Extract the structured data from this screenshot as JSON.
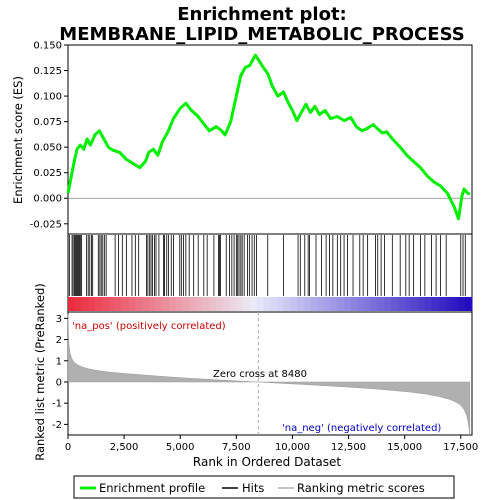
{
  "chart_data": {
    "type": "line",
    "title": "Enrichment plot:",
    "subtitle": "MEMBRANE_LIPID_METABOLIC_PROCESS",
    "top_panel": {
      "ylabel": "Enrichment score (ES)",
      "ylim": [
        -0.035,
        0.15
      ],
      "yticks": [
        "0.150",
        "0.125",
        "0.100",
        "0.075",
        "0.050",
        "0.025",
        "0.000",
        "-0.025"
      ],
      "ytick_values": [
        0.15,
        0.125,
        0.1,
        0.075,
        0.05,
        0.025,
        0.0,
        -0.025
      ],
      "series": [
        {
          "name": "Enrichment profile",
          "color": "#00ee00",
          "x": [
            0,
            100,
            250,
            400,
            550,
            700,
            850,
            1000,
            1200,
            1400,
            1600,
            1800,
            2000,
            2300,
            2600,
            2900,
            3200,
            3450,
            3600,
            3800,
            4000,
            4200,
            4450,
            4700,
            5000,
            5250,
            5500,
            5800,
            6000,
            6300,
            6600,
            6800,
            7000,
            7250,
            7500,
            7700,
            7900,
            8100,
            8350,
            8500,
            8700,
            8900,
            9100,
            9350,
            9600,
            9800,
            10000,
            10200,
            10400,
            10600,
            10800,
            11000,
            11200,
            11450,
            11700,
            12000,
            12300,
            12600,
            12850,
            13100,
            13300,
            13600,
            13800,
            14000,
            14200,
            14500,
            14800,
            15100,
            15400,
            15700,
            16000,
            16300,
            16600,
            16900,
            17200,
            17400,
            17550,
            17650,
            17800,
            17900
          ],
          "y": [
            0.005,
            0.016,
            0.033,
            0.048,
            0.052,
            0.048,
            0.058,
            0.052,
            0.062,
            0.066,
            0.058,
            0.05,
            0.047,
            0.045,
            0.038,
            0.034,
            0.03,
            0.036,
            0.045,
            0.048,
            0.042,
            0.055,
            0.065,
            0.078,
            0.088,
            0.093,
            0.086,
            0.08,
            0.074,
            0.066,
            0.07,
            0.067,
            0.062,
            0.075,
            0.1,
            0.12,
            0.128,
            0.13,
            0.14,
            0.135,
            0.128,
            0.122,
            0.11,
            0.1,
            0.104,
            0.094,
            0.086,
            0.076,
            0.084,
            0.092,
            0.084,
            0.09,
            0.082,
            0.086,
            0.078,
            0.08,
            0.076,
            0.079,
            0.07,
            0.066,
            0.068,
            0.072,
            0.068,
            0.064,
            0.065,
            0.057,
            0.05,
            0.042,
            0.036,
            0.03,
            0.022,
            0.016,
            0.012,
            0.005,
            -0.008,
            -0.02,
            0.002,
            0.009,
            0.005,
            0.004
          ]
        }
      ]
    },
    "hits_panel": {
      "legend_label": "Hits",
      "hit_positions": [
        60,
        180,
        230,
        290,
        330,
        380,
        420,
        470,
        510,
        550,
        600,
        830,
        900,
        970,
        1050,
        1100,
        1350,
        1420,
        1480,
        1550,
        1620,
        1700,
        2100,
        2250,
        2420,
        2600,
        2850,
        3000,
        3150,
        3500,
        3560,
        3640,
        3700,
        3760,
        3850,
        3920,
        4050,
        4250,
        4300,
        4400,
        4480,
        4600,
        4700,
        4980,
        5050,
        5150,
        5250,
        5400,
        5600,
        5800,
        6050,
        6200,
        6500,
        6700,
        6750,
        6800,
        7050,
        7200,
        7300,
        7400,
        7500,
        7560,
        7620,
        7700,
        7760,
        7850,
        8000,
        8080,
        8200,
        8300,
        8400,
        8900,
        9600,
        10250,
        10350,
        10550,
        10700,
        10760,
        11050,
        11300,
        11500,
        11650,
        11800,
        12000,
        12150,
        12300,
        12450,
        12700,
        13000,
        13150,
        13350,
        13700,
        13800,
        13950,
        14100,
        14450,
        14800,
        15050,
        15200,
        15400,
        15700,
        15900,
        16200,
        16400,
        16600,
        16850,
        17500,
        17600,
        17700
      ]
    },
    "rank_panel": {
      "xlabel": "Rank in Ordered Dataset",
      "ylabel": "Ranked list metric (PreRanked)",
      "legend_label": "Ranking metric scores",
      "ylim": [
        -2.5,
        3.3
      ],
      "yticks": [
        "3",
        "2",
        "1",
        "0",
        "-1",
        "-2"
      ],
      "ytick_values": [
        3,
        2,
        1,
        0,
        -1,
        -2
      ],
      "xlim": [
        0,
        18000
      ],
      "xticks": [
        "0",
        "2,500",
        "5,000",
        "7,500",
        "10,000",
        "12,500",
        "15,000",
        "17,500"
      ],
      "xtick_values": [
        0,
        2500,
        5000,
        7500,
        10000,
        12500,
        15000,
        17500
      ],
      "metric_x": [
        0,
        30,
        80,
        150,
        250,
        400,
        600,
        900,
        1300,
        1800,
        2500,
        3500,
        4500,
        5500,
        6500,
        7500,
        8480,
        9500,
        10500,
        11500,
        12500,
        13500,
        14500,
        15300,
        16000,
        16500,
        17000,
        17300,
        17500,
        17650,
        17750,
        17820,
        17870,
        17900
      ],
      "metric_y": [
        3.2,
        1.9,
        1.4,
        1.15,
        0.95,
        0.82,
        0.72,
        0.62,
        0.54,
        0.47,
        0.4,
        0.32,
        0.24,
        0.17,
        0.11,
        0.05,
        0.0,
        -0.06,
        -0.12,
        -0.18,
        -0.24,
        -0.31,
        -0.4,
        -0.48,
        -0.58,
        -0.68,
        -0.82,
        -0.96,
        -1.1,
        -1.3,
        -1.55,
        -1.85,
        -2.2,
        -2.5
      ],
      "zero_cross_label": "Zero cross at 8480",
      "zero_cross": 8480,
      "pos_label": "'na_pos' (positively correlated)",
      "neg_label": "'na_neg' (negatively correlated)"
    },
    "colors": {
      "profile": "#00ee00",
      "hits": "#000000",
      "metric": "#b0b0b0",
      "pos_text": "#cc0000",
      "neg_text": "#0000cc"
    }
  },
  "legend": {
    "items": [
      {
        "label": "Enrichment profile",
        "icon": "green-line"
      },
      {
        "label": "Hits",
        "icon": "black-line"
      },
      {
        "label": "Ranking metric scores",
        "icon": "gray-line"
      }
    ]
  }
}
